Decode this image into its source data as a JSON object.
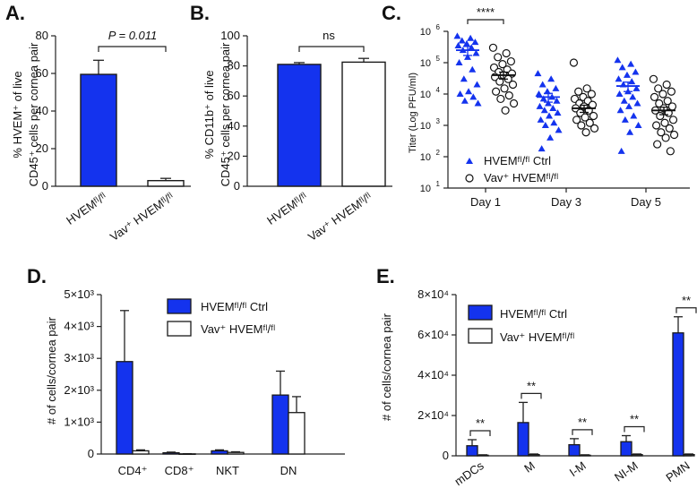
{
  "colors": {
    "blue": "#1433ee",
    "white": "#ffffff",
    "outline": "#1a1a1a"
  },
  "chart_data": [
    {
      "panel": "A.",
      "type": "bar",
      "ylabel_line1": "% HVEM⁺ of live",
      "ylabel_line2": "CD45⁺ cells per cornea pair",
      "ylim": [
        0,
        80
      ],
      "yticks": [
        "0",
        "20",
        "40",
        "60",
        "80"
      ],
      "categories": [
        "HVEMᶠˡ/ᶠˡ",
        "Vav⁺ HVEMᶠˡ/ᶠˡ"
      ],
      "values": [
        59.5,
        3
      ],
      "errors": [
        7.5,
        1.2
      ],
      "fills": [
        "blue",
        "white"
      ],
      "annotation": "P = 0.011"
    },
    {
      "panel": "B.",
      "type": "bar",
      "ylabel_line1": "% CD11b⁺ of live",
      "ylabel_line2": "CD45⁺ cells per cornea pair",
      "ylim": [
        0,
        100
      ],
      "yticks": [
        "0",
        "20",
        "40",
        "60",
        "80",
        "100"
      ],
      "categories": [
        "HVEMᶠˡ/ᶠˡ",
        "Vav⁺ HVEMᶠˡ/ᶠˡ"
      ],
      "values": [
        81,
        82.5
      ],
      "errors": [
        1.2,
        2.5
      ],
      "fills": [
        "blue",
        "white"
      ],
      "annotation": "ns"
    },
    {
      "panel": "C.",
      "type": "scatter",
      "ylabel": "Titer (Log PFU/ml)",
      "yscale": "log",
      "ylim": [
        10,
        1000000
      ],
      "ytick_exponents": [
        "1",
        "2",
        "3",
        "4",
        "5",
        "6"
      ],
      "ytick_base": "10",
      "categories": [
        "Day 1",
        "Day 3",
        "Day 5"
      ],
      "series": [
        {
          "name": "HVEMᶠˡ/ᶠˡ Ctrl",
          "marker": "triangle",
          "means": [
            250000,
            8000,
            18000
          ],
          "sems": [
            80000,
            2500,
            6000
          ],
          "values": [
            [
              700000,
              600000,
              500000,
              450000,
              400000,
              350000,
              300000,
              250000,
              200000,
              150000,
              100000,
              60000,
              30000,
              20000,
              12000,
              10000,
              8000,
              6000,
              5000
            ],
            [
              45000,
              30000,
              20000,
              15000,
              12000,
              10000,
              8000,
              7000,
              6000,
              5000,
              4000,
              3500,
              3000,
              2500,
              2000,
              1500,
              1200,
              1000,
              700,
              400,
              180
            ],
            [
              120000,
              90000,
              70000,
              50000,
              40000,
              30000,
              25000,
              20000,
              15000,
              12000,
              10000,
              8000,
              6000,
              5000,
              4000,
              3000,
              2000,
              1500,
              1000,
              600,
              150
            ]
          ]
        },
        {
          "name": "Vav⁺ HVEMᶠˡ/ᶠˡ",
          "marker": "circle",
          "means": [
            40000,
            3500,
            3000
          ],
          "sems": [
            10000,
            900,
            800
          ],
          "values": [
            [
              300000,
              200000,
              150000,
              110000,
              90000,
              70000,
              60000,
              50000,
              45000,
              40000,
              35000,
              30000,
              25000,
              20000,
              15000,
              12000,
              9000,
              7000,
              5000,
              3000
            ],
            [
              100000,
              15000,
              12000,
              10000,
              8000,
              7000,
              6000,
              5000,
              4500,
              4000,
              3500,
              3000,
              2500,
              2000,
              1800,
              1500,
              1200,
              1000,
              800,
              600
            ],
            [
              30000,
              20000,
              15000,
              12000,
              10000,
              8000,
              6000,
              5000,
              4000,
              3500,
              3000,
              2500,
              2000,
              1500,
              1200,
              1000,
              800,
              600,
              500,
              400,
              250,
              150
            ]
          ]
        }
      ],
      "annotation": "****",
      "legend": [
        "HVEMᶠˡ/ᶠˡ Ctrl",
        "Vav⁺ HVEMᶠˡ/ᶠˡ"
      ]
    },
    {
      "panel": "D.",
      "type": "bar",
      "ylabel": "# of cells/cornea pair",
      "ylim": [
        0,
        5000
      ],
      "yticks": [
        "0",
        "1×10³",
        "2×10³",
        "3×10³",
        "4×10³",
        "5×10³"
      ],
      "categories": [
        "CD4⁺",
        "CD8⁺",
        "NKT",
        "DN"
      ],
      "series": [
        {
          "name": "HVEMᶠˡ/ᶠˡ Ctrl",
          "fill": "blue",
          "values": [
            2900,
            40,
            100,
            1850
          ],
          "errors": [
            1600,
            20,
            30,
            750
          ]
        },
        {
          "name": "Vav⁺ HVEMᶠˡ/ᶠˡ",
          "fill": "white",
          "values": [
            100,
            5,
            50,
            1300
          ],
          "errors": [
            30,
            5,
            20,
            500
          ]
        }
      ],
      "legend": [
        "HVEMᶠˡ/ᶠˡ Ctrl",
        "Vav⁺ HVEMᶠˡ/ᶠˡ"
      ]
    },
    {
      "panel": "E.",
      "type": "bar",
      "ylabel": "# of cells/cornea pair",
      "ylim": [
        0,
        80000
      ],
      "yticks": [
        "0",
        "2×10⁴",
        "4×10⁴",
        "6×10⁴",
        "8×10⁴"
      ],
      "categories": [
        "mDCs",
        "M",
        "I-M",
        "NI-M",
        "PMN"
      ],
      "series": [
        {
          "name": "HVEMᶠˡ/ᶠˡ Ctrl",
          "fill": "blue",
          "values": [
            5000,
            16500,
            5500,
            7000,
            61000
          ],
          "errors": [
            3000,
            10000,
            3000,
            3000,
            8000
          ]
        },
        {
          "name": "Vav⁺ HVEMᶠˡ/ᶠˡ",
          "fill": "white",
          "values": [
            300,
            600,
            300,
            600,
            600
          ],
          "errors": [
            200,
            300,
            200,
            300,
            300
          ]
        }
      ],
      "annotations": [
        "**",
        "**",
        "**",
        "**",
        "**"
      ],
      "legend": [
        "HVEMᶠˡ/ᶠˡ Ctrl",
        "Vav⁺ HVEMᶠˡ/ᶠˡ"
      ]
    }
  ]
}
